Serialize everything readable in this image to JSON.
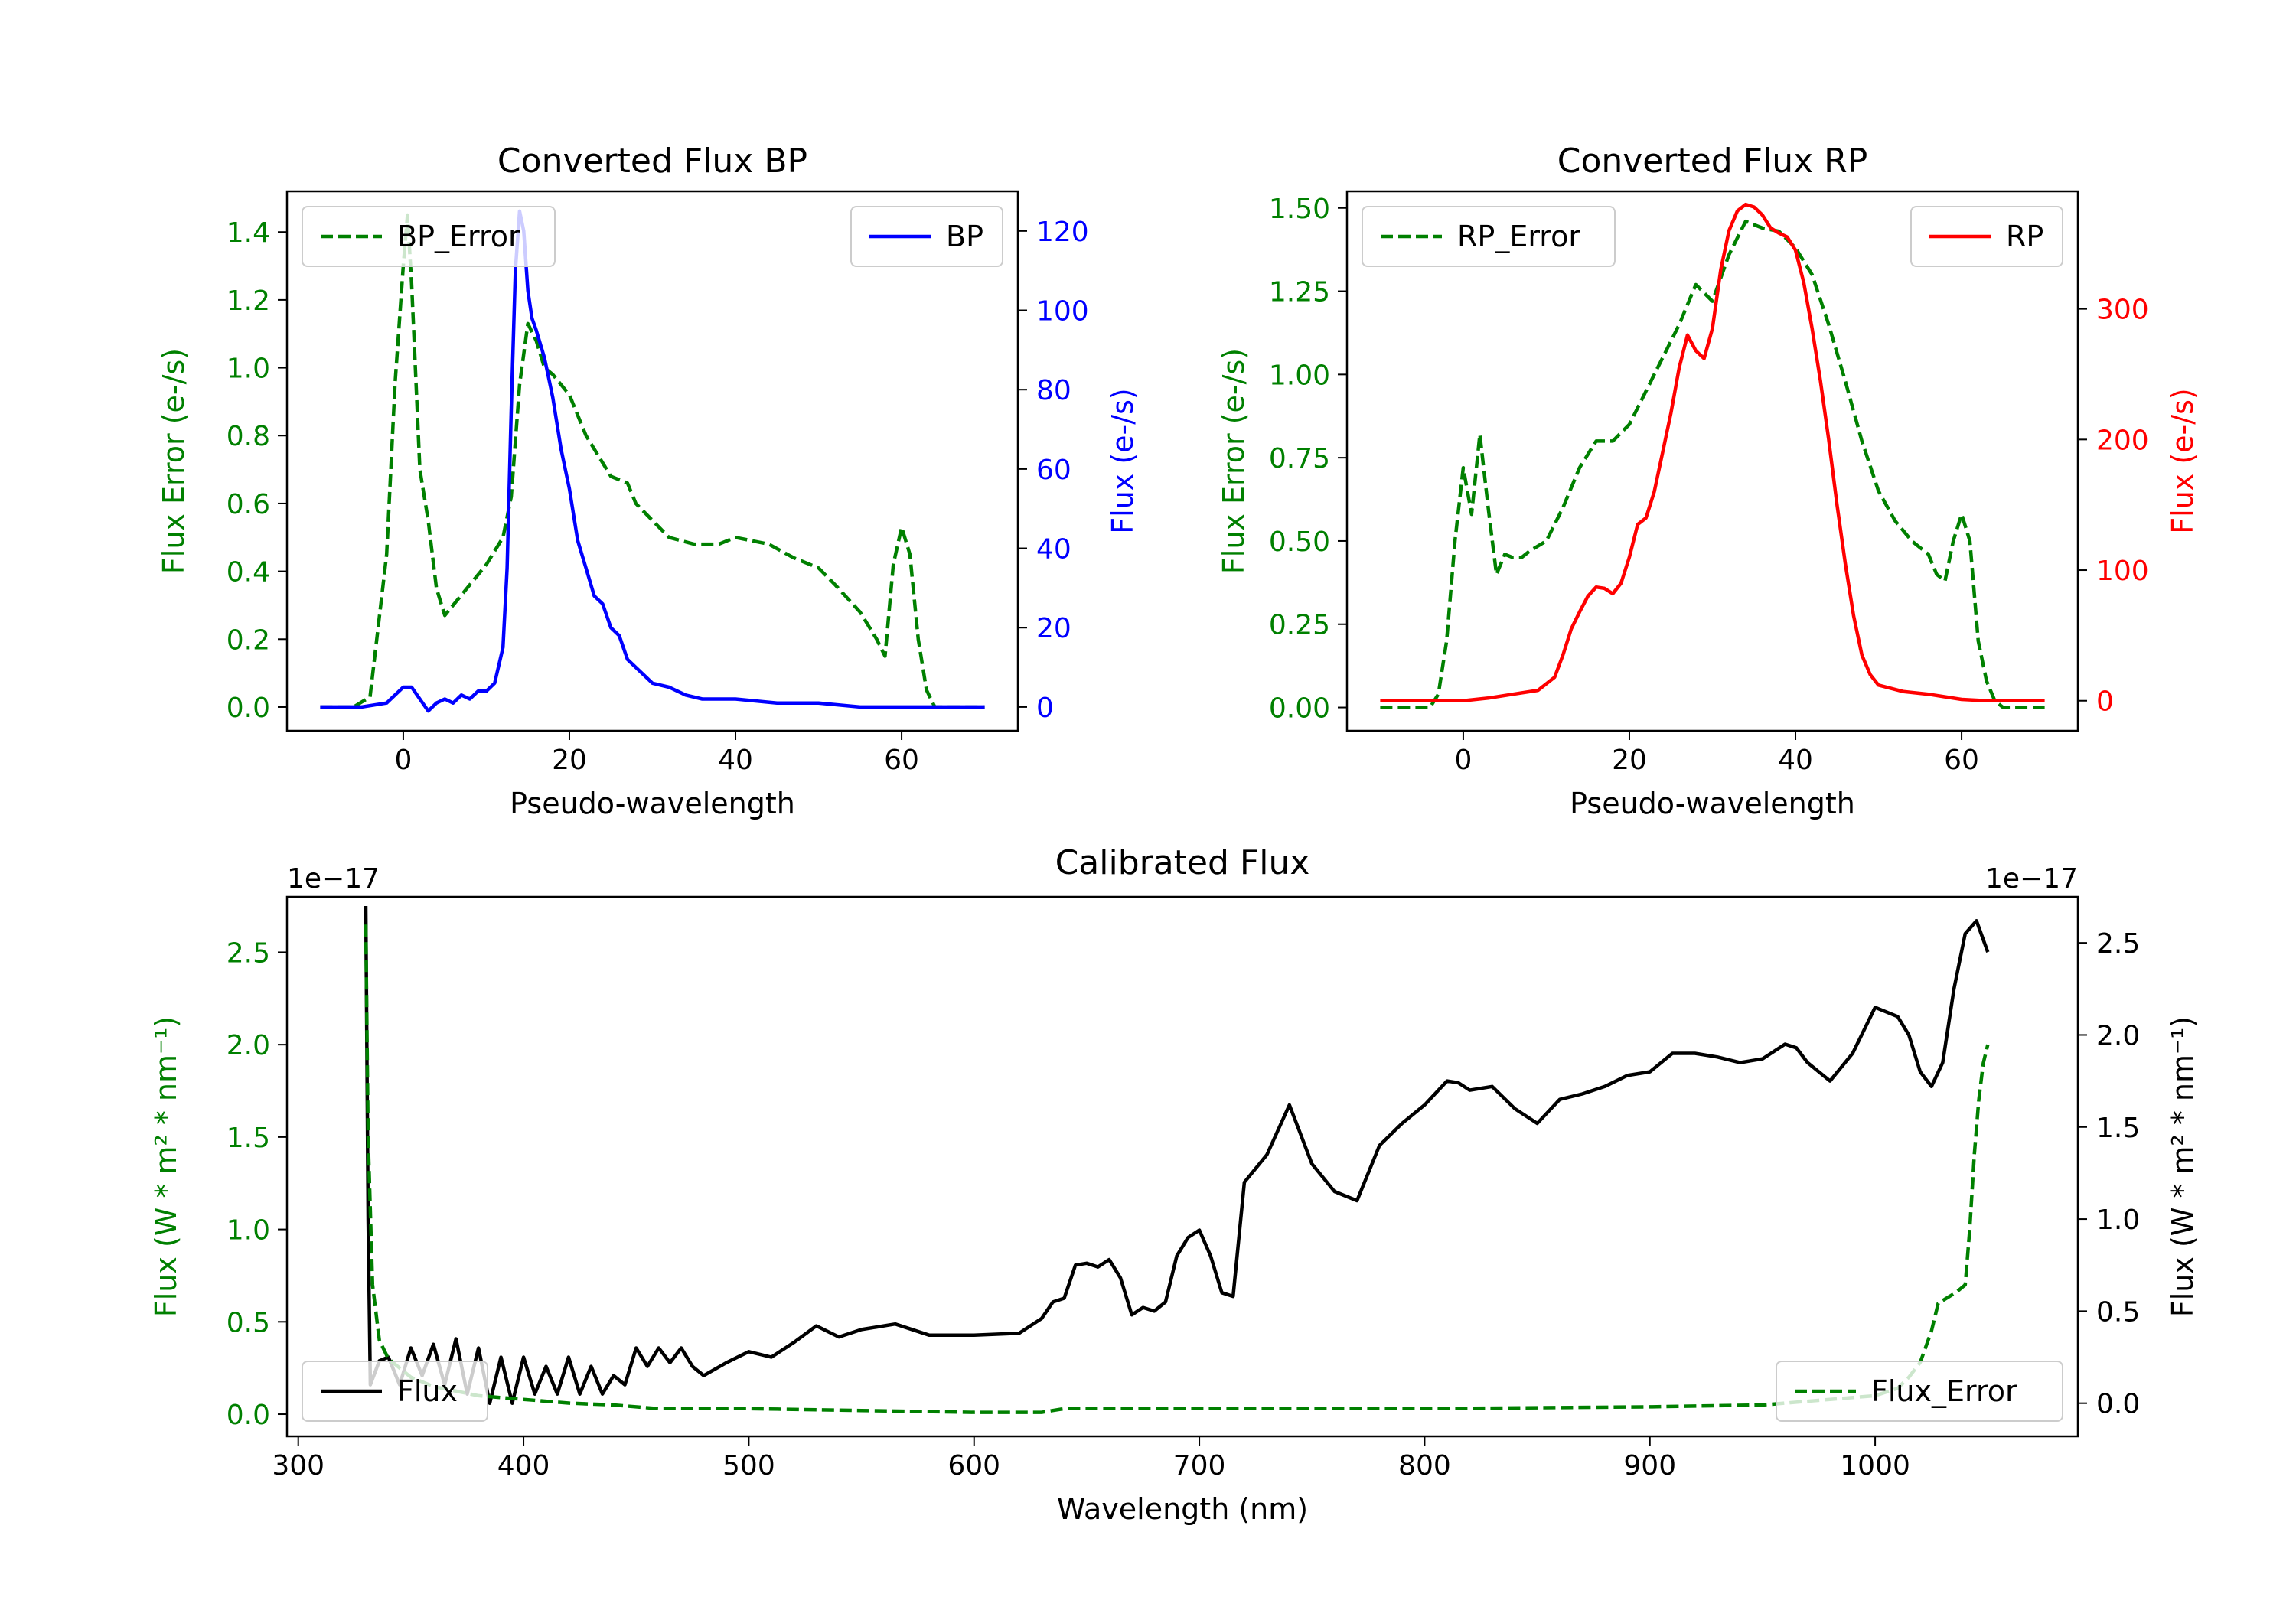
{
  "chart_data": [
    {
      "type": "line",
      "title": "Converted Flux BP",
      "xlabel": "Pseudo-wavelength",
      "ylabel": "Flux Error (e-/s)",
      "ylabel_right": "Flux (e-/s)",
      "xlim": [
        -14,
        74
      ],
      "ylim": [
        -0.07,
        1.52
      ],
      "ylim_right": [
        -6,
        130
      ],
      "xticks": [
        0,
        20,
        40,
        60
      ],
      "yticks": [
        0.0,
        0.2,
        0.4,
        0.6,
        0.8,
        1.0,
        1.2,
        1.4
      ],
      "yticks_right": [
        0,
        20,
        40,
        60,
        80,
        100,
        120
      ],
      "series": [
        {
          "name": "BP_Error",
          "color": "#008000",
          "style": "dashed",
          "axis": "left",
          "legend": "upper left",
          "x": [
            -10,
            -6,
            -4,
            -2,
            -1,
            0,
            0.5,
            1,
            2,
            3,
            4,
            5,
            6,
            8,
            10,
            12,
            13,
            14,
            15,
            16,
            17,
            18,
            20,
            22,
            24,
            25,
            27,
            28,
            30,
            32,
            35,
            38,
            40,
            44,
            47,
            50,
            52,
            55,
            57,
            58,
            59,
            60,
            61,
            62,
            63,
            64,
            66,
            70
          ],
          "y": [
            0.0,
            0.0,
            0.03,
            0.45,
            0.95,
            1.3,
            1.45,
            1.25,
            0.7,
            0.55,
            0.35,
            0.27,
            0.3,
            0.36,
            0.42,
            0.5,
            0.62,
            0.95,
            1.13,
            1.08,
            1.0,
            0.98,
            0.92,
            0.8,
            0.72,
            0.68,
            0.66,
            0.6,
            0.55,
            0.5,
            0.48,
            0.48,
            0.5,
            0.48,
            0.44,
            0.41,
            0.36,
            0.28,
            0.2,
            0.15,
            0.42,
            0.53,
            0.45,
            0.2,
            0.05,
            0.0,
            0.0,
            0.0
          ]
        },
        {
          "name": "BP",
          "color": "#0000ff",
          "style": "solid",
          "axis": "right",
          "legend": "upper right",
          "x": [
            -10,
            -5,
            -2,
            0,
            1,
            2,
            3,
            4,
            5,
            6,
            7,
            8,
            9,
            10,
            11,
            12,
            12.5,
            13,
            13.5,
            14,
            14.5,
            15,
            15.5,
            16,
            17,
            18,
            19,
            20,
            21,
            22,
            23,
            24,
            25,
            26,
            27,
            28,
            29,
            30,
            32,
            34,
            36,
            40,
            45,
            50,
            55,
            60,
            65,
            70
          ],
          "y": [
            0,
            0,
            1,
            5,
            5,
            2,
            -1,
            1,
            2,
            1,
            3,
            2,
            4,
            4,
            6,
            15,
            35,
            75,
            110,
            125,
            120,
            105,
            98,
            95,
            88,
            78,
            65,
            55,
            42,
            35,
            28,
            26,
            20,
            18,
            12,
            10,
            8,
            6,
            5,
            3,
            2,
            2,
            1,
            1,
            0,
            0,
            0,
            0
          ]
        }
      ]
    },
    {
      "type": "line",
      "title": "Converted Flux RP",
      "xlabel": "Pseudo-wavelength",
      "ylabel": "Flux Error (e-/s)",
      "ylabel_right": "Flux (e-/s)",
      "xlim": [
        -14,
        74
      ],
      "ylim": [
        -0.07,
        1.55
      ],
      "ylim_right": [
        -23,
        390
      ],
      "xticks": [
        0,
        20,
        40,
        60
      ],
      "yticks": [
        0.0,
        0.25,
        0.5,
        0.75,
        1.0,
        1.25,
        1.5
      ],
      "yticks_right": [
        0,
        100,
        200,
        300
      ],
      "series": [
        {
          "name": "RP_Error",
          "color": "#008000",
          "style": "dashed",
          "axis": "left",
          "legend": "upper left",
          "x": [
            -10,
            -4,
            -3,
            -2,
            -1,
            0,
            1,
            2,
            3,
            4,
            5,
            6,
            7,
            8,
            10,
            12,
            14,
            16,
            18,
            20,
            22,
            24,
            26,
            28,
            30,
            32,
            34,
            36,
            38,
            40,
            42,
            44,
            46,
            48,
            50,
            52,
            54,
            56,
            57,
            58,
            59,
            60,
            61,
            62,
            63,
            64,
            65,
            70
          ],
          "y": [
            0.0,
            0.0,
            0.04,
            0.2,
            0.5,
            0.72,
            0.58,
            0.82,
            0.6,
            0.4,
            0.46,
            0.45,
            0.45,
            0.47,
            0.5,
            0.6,
            0.72,
            0.8,
            0.8,
            0.85,
            0.95,
            1.05,
            1.15,
            1.27,
            1.22,
            1.36,
            1.46,
            1.44,
            1.43,
            1.38,
            1.3,
            1.15,
            0.98,
            0.8,
            0.65,
            0.56,
            0.5,
            0.46,
            0.4,
            0.38,
            0.5,
            0.58,
            0.5,
            0.2,
            0.08,
            0.02,
            0.0,
            0.0
          ]
        },
        {
          "name": "RP",
          "color": "#ff0000",
          "style": "solid",
          "axis": "right",
          "legend": "upper right",
          "x": [
            -10,
            -4,
            0,
            3,
            6,
            9,
            11,
            12,
            13,
            14,
            15,
            16,
            17,
            18,
            19,
            20,
            21,
            22,
            23,
            24,
            25,
            26,
            27,
            28,
            29,
            30,
            31,
            32,
            33,
            34,
            35,
            36,
            37,
            38,
            39,
            40,
            41,
            42,
            43,
            44,
            45,
            46,
            47,
            48,
            49,
            50,
            53,
            56,
            58,
            60,
            63,
            70
          ],
          "y": [
            0,
            0,
            0,
            2,
            5,
            8,
            18,
            35,
            55,
            68,
            80,
            87,
            86,
            82,
            90,
            110,
            135,
            140,
            160,
            190,
            220,
            255,
            280,
            268,
            262,
            285,
            330,
            360,
            375,
            380,
            378,
            372,
            362,
            358,
            355,
            345,
            320,
            285,
            245,
            200,
            150,
            105,
            65,
            35,
            20,
            12,
            7,
            5,
            3,
            1,
            0,
            0
          ]
        }
      ]
    },
    {
      "type": "line",
      "title": "Calibrated Flux",
      "xlabel": "Wavelength (nm)",
      "ylabel": "Flux (W * m² * nm⁻¹)",
      "ylabel_right": "Flux (W * m² * nm⁻¹)",
      "scale_label": "1e−17",
      "scale_label_right": "1e−17",
      "xlim": [
        295,
        1090
      ],
      "ylim": [
        -0.12,
        2.8
      ],
      "ylim_right": [
        -0.18,
        2.75
      ],
      "xticks": [
        300,
        400,
        500,
        600,
        700,
        800,
        900,
        1000
      ],
      "yticks": [
        0.0,
        0.5,
        1.0,
        1.5,
        2.0,
        2.5
      ],
      "yticks_right": [
        0.0,
        0.5,
        1.0,
        1.5,
        2.0,
        2.5
      ],
      "series": [
        {
          "name": "Flux",
          "color": "#000000",
          "style": "solid",
          "axis": "right",
          "legend": "lower left",
          "x": [
            330,
            331,
            332,
            336,
            340,
            345,
            350,
            355,
            360,
            365,
            370,
            375,
            380,
            385,
            390,
            395,
            400,
            405,
            410,
            415,
            420,
            425,
            430,
            435,
            440,
            445,
            450,
            455,
            460,
            465,
            470,
            475,
            480,
            490,
            500,
            510,
            520,
            530,
            540,
            550,
            565,
            580,
            590,
            600,
            620,
            630,
            635,
            640,
            645,
            650,
            655,
            660,
            665,
            670,
            675,
            680,
            685,
            690,
            695,
            700,
            705,
            710,
            715,
            720,
            730,
            740,
            750,
            760,
            770,
            780,
            790,
            800,
            810,
            815,
            820,
            830,
            840,
            850,
            860,
            870,
            880,
            890,
            900,
            910,
            920,
            930,
            940,
            950,
            960,
            965,
            970,
            980,
            990,
            1000,
            1010,
            1015,
            1020,
            1025,
            1030,
            1035,
            1040,
            1045,
            1050
          ],
          "y": [
            2.7,
            1.0,
            0.1,
            0.23,
            0.25,
            0.1,
            0.3,
            0.15,
            0.32,
            0.1,
            0.35,
            0.05,
            0.3,
            0.0,
            0.25,
            0.0,
            0.25,
            0.05,
            0.2,
            0.05,
            0.25,
            0.05,
            0.2,
            0.05,
            0.15,
            0.1,
            0.3,
            0.2,
            0.3,
            0.22,
            0.3,
            0.2,
            0.15,
            0.22,
            0.28,
            0.25,
            0.33,
            0.42,
            0.36,
            0.4,
            0.43,
            0.37,
            0.37,
            0.37,
            0.38,
            0.46,
            0.55,
            0.57,
            0.75,
            0.76,
            0.74,
            0.78,
            0.68,
            0.48,
            0.52,
            0.5,
            0.55,
            0.8,
            0.9,
            0.94,
            0.8,
            0.6,
            0.58,
            1.2,
            1.35,
            1.62,
            1.3,
            1.15,
            1.1,
            1.4,
            1.52,
            1.62,
            1.75,
            1.74,
            1.7,
            1.72,
            1.6,
            1.52,
            1.65,
            1.68,
            1.72,
            1.78,
            1.8,
            1.9,
            1.9,
            1.88,
            1.85,
            1.87,
            1.95,
            1.93,
            1.85,
            1.75,
            1.9,
            2.15,
            2.1,
            2.0,
            1.8,
            1.72,
            1.85,
            2.25,
            2.55,
            2.62,
            2.45
          ]
        },
        {
          "name": "Flux_Error",
          "color": "#008000",
          "style": "dashed",
          "axis": "left",
          "legend": "lower right",
          "x": [
            330,
            331,
            333,
            336,
            340,
            345,
            350,
            360,
            380,
            400,
            420,
            440,
            460,
            500,
            550,
            600,
            630,
            640,
            700,
            800,
            900,
            950,
            980,
            1000,
            1010,
            1015,
            1020,
            1025,
            1028,
            1032,
            1036,
            1040,
            1042,
            1044,
            1046,
            1048,
            1050
          ],
          "y": [
            2.65,
            1.5,
            0.7,
            0.4,
            0.3,
            0.25,
            0.2,
            0.15,
            0.1,
            0.08,
            0.06,
            0.05,
            0.03,
            0.03,
            0.02,
            0.01,
            0.01,
            0.03,
            0.03,
            0.03,
            0.04,
            0.05,
            0.08,
            0.1,
            0.14,
            0.2,
            0.28,
            0.45,
            0.6,
            0.63,
            0.66,
            0.7,
            1.0,
            1.4,
            1.7,
            1.9,
            2.0
          ]
        }
      ]
    }
  ]
}
